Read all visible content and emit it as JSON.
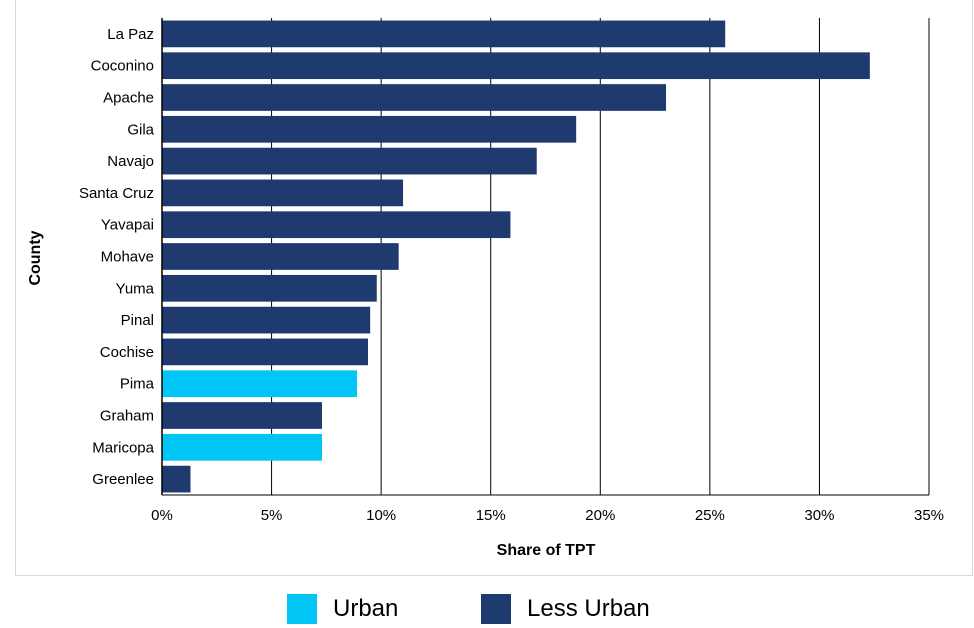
{
  "chart_data": {
    "type": "bar",
    "orientation": "horizontal",
    "xlabel": "Share of TPT",
    "ylabel": "County",
    "xlim": [
      0,
      35
    ],
    "x_ticks": [
      0,
      5,
      10,
      15,
      20,
      25,
      30,
      35
    ],
    "x_tick_labels": [
      "0%",
      "5%",
      "10%",
      "15%",
      "20%",
      "25%",
      "30%",
      "35%"
    ],
    "grid": "vertical",
    "legend_position": "bottom",
    "colors": {
      "Urban": "#00c5f5",
      "Less Urban": "#1f3a6e",
      "grid": "#000000",
      "axis": "#000000"
    },
    "legend": [
      "Urban",
      "Less Urban"
    ],
    "categories": [
      "La Paz",
      "Coconino",
      "Apache",
      "Gila",
      "Navajo",
      "Santa Cruz",
      "Yavapai",
      "Mohave",
      "Yuma",
      "Pinal",
      "Cochise",
      "Pima",
      "Graham",
      "Maricopa",
      "Greenlee"
    ],
    "values": [
      25.7,
      32.3,
      23.0,
      18.9,
      17.1,
      11.0,
      15.9,
      10.8,
      9.8,
      9.5,
      9.4,
      8.9,
      7.3,
      7.3,
      1.3
    ],
    "groups": [
      "Less Urban",
      "Less Urban",
      "Less Urban",
      "Less Urban",
      "Less Urban",
      "Less Urban",
      "Less Urban",
      "Less Urban",
      "Less Urban",
      "Less Urban",
      "Less Urban",
      "Urban",
      "Less Urban",
      "Urban",
      "Less Urban"
    ]
  }
}
